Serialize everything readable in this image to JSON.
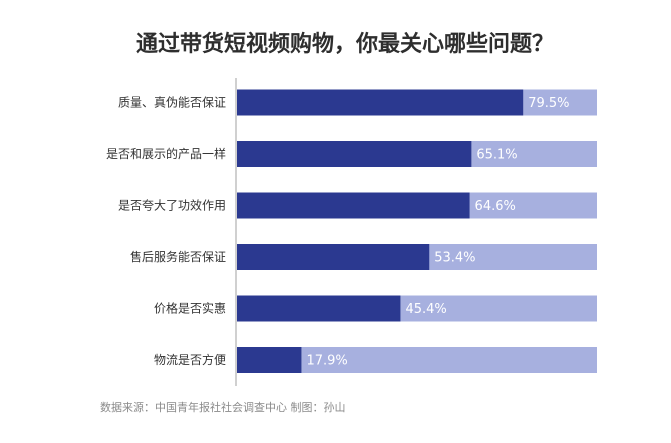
{
  "chart_data": {
    "type": "bar",
    "orientation": "horizontal",
    "title": "通过带货短视频购物，你最关心哪些问题？",
    "categories": [
      "质量、真伪能否保证",
      "是否和展示的产品一样",
      "是否夸大了功效作用",
      "售后服务能否保证",
      "价格是否实惠",
      "物流是否方便"
    ],
    "values": [
      79.5,
      65.1,
      64.6,
      53.4,
      45.4,
      17.9
    ],
    "value_labels": [
      "79.5%",
      "65.1%",
      "64.6%",
      "53.4%",
      "45.4%",
      "17.9%"
    ],
    "xlim": [
      0,
      100
    ],
    "grid": false,
    "source_note": "数据来源：中国青年报社社会调查中心 制图：孙山",
    "colors": {
      "bar": "#2b3990",
      "track": "#a7b0df",
      "value_label": "#ffffff"
    }
  }
}
